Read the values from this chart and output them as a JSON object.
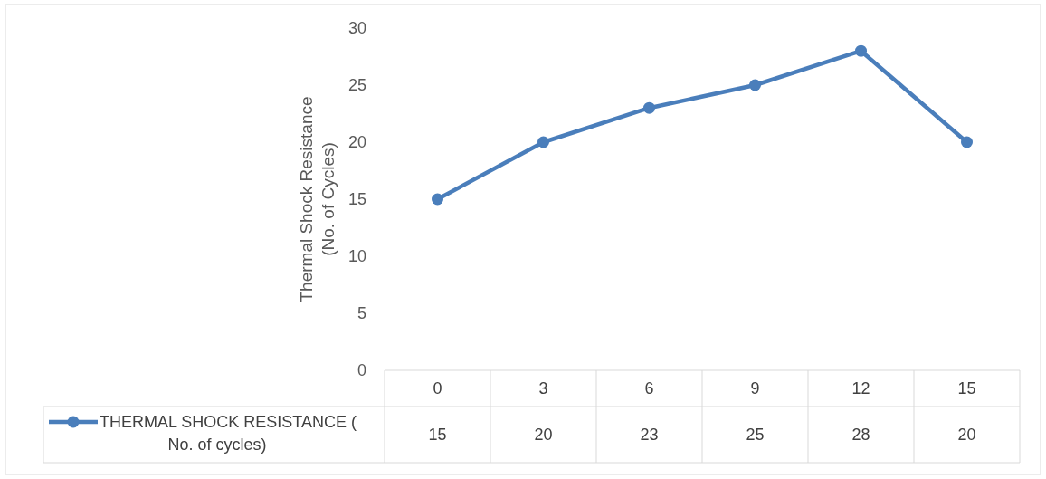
{
  "chart_data": {
    "type": "line",
    "ylabel": "Thermal Shock Resistance (No. of Cycles)",
    "categories": [
      "0",
      "3",
      "6",
      "9",
      "12",
      "15"
    ],
    "series": [
      {
        "name": "THERMAL SHOCK RESISTANCE ( No. of cycles)",
        "color": "#4a7ebb",
        "values": [
          15,
          20,
          23,
          25,
          28,
          20
        ]
      }
    ],
    "ylim": [
      0,
      30
    ],
    "yticks": [
      0,
      5,
      10,
      15,
      20,
      25,
      30
    ],
    "grid": false,
    "marker": "circle",
    "line_style": "solid",
    "data_labels": true,
    "legend": "bottom"
  }
}
